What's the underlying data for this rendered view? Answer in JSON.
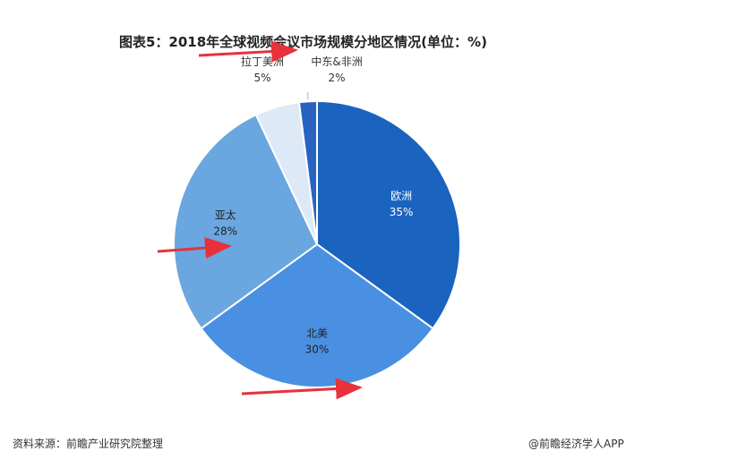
{
  "title": "图表5：2018年全球视频会议市场规模分地区情况(单位：%)",
  "footer": {
    "source": "资料来源：前瞻产业研究院整理",
    "credit": "@前瞻经济学人APP"
  },
  "chart_data": {
    "type": "pie",
    "unit": "%",
    "slices": [
      {
        "name": "欧洲",
        "value": 35,
        "label": "35%",
        "color": "#1a63be",
        "text_color": "#ffffff"
      },
      {
        "name": "北美",
        "value": 30,
        "label": "30%",
        "color": "#4a90e2",
        "text_color": "#222222"
      },
      {
        "name": "亚太",
        "value": 28,
        "label": "28%",
        "color": "#6aa6e0",
        "text_color": "#222222"
      },
      {
        "name": "拉丁美洲",
        "value": 5,
        "label": "5%",
        "color": "#dde9f6",
        "text_color": "#333333"
      },
      {
        "name": "中东&非洲",
        "value": 2,
        "label": "2%",
        "color": "#2a62c0",
        "text_color": "#333333"
      }
    ],
    "start_angle_deg": 0,
    "direction": "clockwise"
  }
}
